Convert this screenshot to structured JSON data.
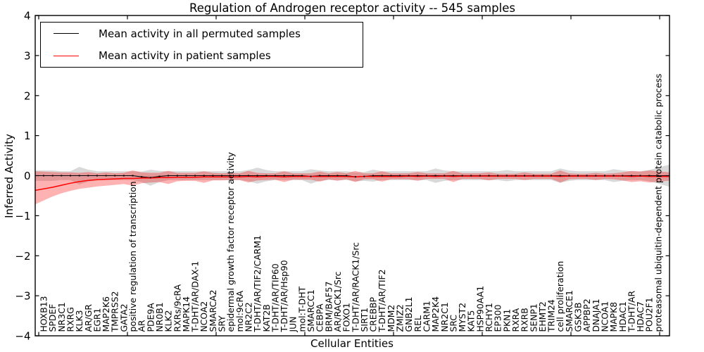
{
  "figure": {
    "title": "Regulation of Androgen receptor activity -- 545 samples",
    "x_axis_label": "Cellular Entities",
    "y_axis_label": "Inferred Activity"
  },
  "legend": {
    "entries": [
      {
        "label": "Mean activity in all permuted samples",
        "color": "#000000"
      },
      {
        "label": "Mean activity in patient samples",
        "color": "#ff0000"
      }
    ]
  },
  "axes": {
    "ytick_labels": [
      "4",
      "3",
      "2",
      "1",
      "0",
      "−1",
      "−2",
      "−3",
      "−4"
    ]
  },
  "chart_data": {
    "type": "line",
    "title": "Regulation of Androgen receptor activity -- 545 samples",
    "xlabel": "Cellular Entities",
    "ylabel": "Inferred Activity",
    "ylim": [
      -4,
      4
    ],
    "yticks": [
      4,
      3,
      2,
      1,
      0,
      -1,
      -2,
      -3,
      -4
    ],
    "x_major_tick_step": 10,
    "grid": false,
    "legend_position": "upper left",
    "categories": [
      "HOXB13",
      "SPDEF",
      "NR3C1",
      "RXRG",
      "KLK3",
      "AR/GR",
      "EGR1",
      "MAP2K6",
      "TMPRSS2",
      "GATA2",
      "positive regulation of transcription",
      "AR",
      "PDE9A",
      "NR0B1",
      "KLK2",
      "RXRs/9cRA",
      "MAPK14",
      "T-DHT/AR/DAX-1",
      "NCOA2",
      "SMARCA2",
      "SRY",
      "epidermal growth factor receptor activity",
      "mol:9cRA",
      "NR2C2",
      "T-DHT/AR/TIF2/CARM1",
      "KAT2B",
      "T-DHT/AR/TIP60",
      "T-DHT/AR/Hsp90",
      "JUN",
      "mol:T-DHT",
      "SMARCC1",
      "CEBPA",
      "BRM/BAF57",
      "AR/RACK1/Src",
      "FOXO1",
      "T-DHT/AR/RACK1/Src",
      "SIRT1",
      "CREBBP",
      "T-DHT/AR/TIF2",
      "MDM2",
      "ZMIZ2",
      "GNB2L1",
      "REL",
      "CARM1",
      "MAP2K4",
      "NR2C1",
      "SRC",
      "MYST2",
      "KAT5",
      "HSP90AA1",
      "RCHY1",
      "EP300",
      "PKN1",
      "RXRA",
      "RXRB",
      "SENP1",
      "EHMT2",
      "TRIM24",
      "cell proliferation",
      "SMARCE1",
      "GSK3B",
      "APPBP2",
      "DNAJA1",
      "NCOA1",
      "MAPK8",
      "HDAC1",
      "T-DHT/AR",
      "HDAC7",
      "POU2F1",
      "proteasomal ubiquitin-dependent protein catabolic process"
    ],
    "series": [
      {
        "name": "Mean activity in all permuted samples",
        "color": "#000000",
        "values": [
          0,
          0,
          0,
          0,
          0,
          0,
          0,
          0,
          0,
          0,
          0,
          -0.03,
          -0.05,
          -0.02,
          0,
          0,
          0,
          0,
          0,
          0,
          0,
          0,
          0,
          0,
          0,
          0,
          0,
          0,
          0,
          0,
          -0.02,
          0,
          0,
          0,
          0,
          -0.03,
          -0.02,
          0,
          0,
          0,
          0,
          0,
          0,
          0,
          0,
          0,
          0,
          0,
          0,
          0,
          0,
          0,
          0,
          0,
          0,
          0,
          0,
          0,
          0,
          0,
          0,
          0,
          0,
          0,
          0,
          0,
          0,
          0,
          0,
          0
        ]
      },
      {
        "name": "Mean activity in patient samples",
        "color": "#ff0000",
        "values": [
          -0.33,
          -0.29,
          -0.24,
          -0.19,
          -0.15,
          -0.12,
          -0.1,
          -0.09,
          -0.08,
          -0.07,
          -0.07,
          -0.06,
          -0.06,
          -0.05,
          -0.05,
          -0.04,
          -0.04,
          -0.04,
          -0.03,
          -0.03,
          -0.03,
          -0.03,
          -0.03,
          -0.02,
          -0.03,
          -0.02,
          -0.02,
          -0.03,
          -0.02,
          -0.02,
          -0.02,
          -0.02,
          -0.02,
          -0.02,
          -0.02,
          -0.03,
          -0.02,
          -0.02,
          -0.02,
          -0.02,
          -0.02,
          -0.01,
          -0.02,
          -0.01,
          -0.02,
          -0.01,
          -0.02,
          -0.01,
          -0.01,
          -0.01,
          -0.01,
          -0.01,
          -0.01,
          -0.01,
          -0.01,
          -0.01,
          -0.01,
          -0.01,
          -0.02,
          -0.01,
          -0.01,
          -0.01,
          -0.01,
          -0.01,
          -0.01,
          -0.01,
          -0.02,
          -0.01,
          -0.02,
          -0.02
        ]
      }
    ],
    "bands": [
      {
        "name": "permuted-samples-spread",
        "center_series": 0,
        "color": "#000000",
        "opacity": 0.15,
        "half_width": [
          0.13,
          0.13,
          0.11,
          0.11,
          0.22,
          0.15,
          0.11,
          0.11,
          0.11,
          0.11,
          0.11,
          0.13,
          0.2,
          0.14,
          0.11,
          0.11,
          0.11,
          0.11,
          0.11,
          0.11,
          0.11,
          0.11,
          0.11,
          0.14,
          0.2,
          0.14,
          0.11,
          0.11,
          0.11,
          0.11,
          0.18,
          0.13,
          0.11,
          0.11,
          0.11,
          0.11,
          0.11,
          0.15,
          0.11,
          0.11,
          0.11,
          0.11,
          0.11,
          0.11,
          0.18,
          0.13,
          0.11,
          0.11,
          0.11,
          0.11,
          0.11,
          0.11,
          0.14,
          0.11,
          0.11,
          0.11,
          0.11,
          0.11,
          0.18,
          0.13,
          0.11,
          0.11,
          0.11,
          0.11,
          0.16,
          0.13,
          0.11,
          0.11,
          0.14,
          0.2
        ]
      },
      {
        "name": "patient-samples-spread",
        "color": "#ff0000",
        "opacity": 0.3,
        "low": [
          -0.62,
          -0.52,
          -0.44,
          -0.38,
          -0.33,
          -0.3,
          -0.27,
          -0.25,
          -0.23,
          -0.21,
          -0.25,
          -0.19,
          -0.17,
          -0.16,
          -0.21,
          -0.14,
          -0.13,
          -0.13,
          -0.18,
          -0.12,
          -0.12,
          -0.11,
          -0.11,
          -0.17,
          -0.12,
          -0.11,
          -0.1,
          -0.16,
          -0.1,
          -0.1,
          -0.1,
          -0.15,
          -0.09,
          -0.13,
          -0.09,
          -0.16,
          -0.09,
          -0.09,
          -0.15,
          -0.09,
          -0.09,
          -0.09,
          -0.13,
          -0.08,
          -0.08,
          -0.08,
          -0.16,
          -0.08,
          -0.08,
          -0.08,
          -0.12,
          -0.08,
          -0.08,
          -0.08,
          -0.11,
          -0.08,
          -0.08,
          -0.08,
          -0.17,
          -0.09,
          -0.08,
          -0.08,
          -0.11,
          -0.08,
          -0.09,
          -0.12,
          -0.16,
          -0.14,
          -0.17,
          -0.15
        ],
        "high": [
          0.1,
          0.09,
          0.08,
          0.08,
          0.07,
          0.09,
          0.06,
          0.08,
          0.06,
          0.07,
          0.13,
          0.08,
          0.07,
          0.07,
          0.12,
          0.07,
          0.07,
          0.07,
          0.11,
          0.07,
          0.06,
          0.07,
          0.06,
          0.12,
          0.07,
          0.06,
          0.06,
          0.11,
          0.06,
          0.06,
          0.06,
          0.1,
          0.06,
          0.09,
          0.06,
          0.12,
          0.06,
          0.06,
          0.11,
          0.06,
          0.06,
          0.06,
          0.09,
          0.06,
          0.06,
          0.06,
          0.12,
          0.06,
          0.06,
          0.06,
          0.08,
          0.05,
          0.05,
          0.05,
          0.08,
          0.05,
          0.05,
          0.05,
          0.13,
          0.06,
          0.05,
          0.05,
          0.07,
          0.05,
          0.06,
          0.08,
          0.12,
          0.1,
          0.13,
          0.11
        ]
      }
    ]
  }
}
